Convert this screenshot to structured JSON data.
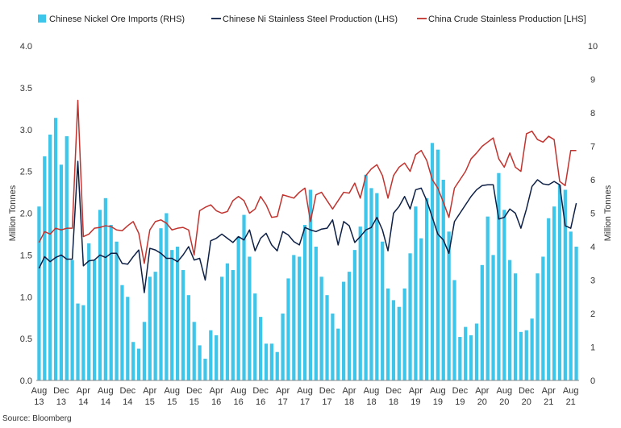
{
  "chart_data": {
    "type": "bar+line",
    "title": "",
    "source": "Source: Bloomberg",
    "ylabel_left": "Million Tonnes",
    "ylabel_right": "Million Tonnes",
    "ylim_left": [
      0,
      4
    ],
    "ylim_right": [
      0,
      10
    ],
    "yticks_left": [
      "0.0",
      "0.5",
      "1.0",
      "1.5",
      "2.0",
      "2.5",
      "3.0",
      "3.5",
      "4.0"
    ],
    "yticks_right": [
      "0",
      "1",
      "2",
      "3",
      "4",
      "5",
      "6",
      "7",
      "8",
      "9",
      "10"
    ],
    "x_start": "2013-08",
    "x_tick_labels": [
      {
        "month": "Aug",
        "year": "13"
      },
      {
        "month": "Dec",
        "year": "13"
      },
      {
        "month": "Apr",
        "year": "14"
      },
      {
        "month": "Aug",
        "year": "14"
      },
      {
        "month": "Dec",
        "year": "14"
      },
      {
        "month": "Apr",
        "year": "15"
      },
      {
        "month": "Aug",
        "year": "15"
      },
      {
        "month": "Dec",
        "year": "15"
      },
      {
        "month": "Apr",
        "year": "16"
      },
      {
        "month": "Aug",
        "year": "16"
      },
      {
        "month": "Dec",
        "year": "16"
      },
      {
        "month": "Apr",
        "year": "17"
      },
      {
        "month": "Aug",
        "year": "17"
      },
      {
        "month": "Dec",
        "year": "17"
      },
      {
        "month": "Apr",
        "year": "18"
      },
      {
        "month": "Aug",
        "year": "18"
      },
      {
        "month": "Dec",
        "year": "18"
      },
      {
        "month": "Apr",
        "year": "19"
      },
      {
        "month": "Aug",
        "year": "19"
      },
      {
        "month": "Dec",
        "year": "19"
      },
      {
        "month": "Apr",
        "year": "20"
      },
      {
        "month": "Aug",
        "year": "20"
      },
      {
        "month": "Dec",
        "year": "20"
      },
      {
        "month": "Apr",
        "year": "21"
      },
      {
        "month": "Aug",
        "year": "21"
      }
    ],
    "series": [
      {
        "name": "Chinese Nickel Ore Imports (RHS)",
        "kind": "bar",
        "axis": "right",
        "color": "#3ec6ea",
        "values": [
          5.2,
          6.7,
          7.35,
          7.85,
          6.45,
          7.3,
          3.6,
          2.3,
          2.25,
          4.1,
          3.6,
          5.1,
          5.45,
          4.65,
          4.15,
          2.85,
          2.5,
          1.15,
          0.95,
          1.75,
          3.1,
          3.25,
          4.55,
          5.0,
          3.9,
          4.0,
          3.3,
          2.55,
          1.75,
          1.05,
          0.65,
          1.5,
          1.35,
          3.1,
          3.5,
          3.3,
          4.3,
          4.95,
          3.7,
          2.6,
          1.9,
          1.1,
          1.1,
          0.85,
          2.0,
          3.05,
          3.75,
          3.7,
          4.65,
          5.7,
          4.0,
          3.1,
          2.55,
          2.0,
          1.55,
          2.95,
          3.25,
          3.9,
          4.6,
          6.15,
          5.75,
          5.6,
          4.15,
          2.75,
          2.4,
          2.2,
          2.75,
          3.8,
          5.2,
          4.25,
          5.45,
          7.1,
          6.9,
          6.0,
          4.45,
          3.0,
          1.3,
          1.6,
          1.35,
          1.7,
          3.45,
          4.9,
          3.75,
          6.2,
          5.1,
          3.6,
          3.2,
          1.45,
          1.5,
          1.85,
          3.2,
          3.7,
          4.85,
          5.2,
          5.85,
          5.7,
          4.45,
          4.0
        ]
      },
      {
        "name": "Chinese Ni Stainless Steel Production (LHS)",
        "kind": "line",
        "axis": "left",
        "color": "#0d1f45",
        "values": [
          1.34,
          1.48,
          1.42,
          1.47,
          1.5,
          1.45,
          1.45,
          2.62,
          1.37,
          1.43,
          1.44,
          1.5,
          1.47,
          1.52,
          1.52,
          1.4,
          1.39,
          1.48,
          1.56,
          1.05,
          1.58,
          1.56,
          1.52,
          1.46,
          1.46,
          1.42,
          1.5,
          1.6,
          1.44,
          1.46,
          1.2,
          1.67,
          1.7,
          1.75,
          1.7,
          1.65,
          1.72,
          1.68,
          1.8,
          1.55,
          1.7,
          1.76,
          1.62,
          1.55,
          1.78,
          1.74,
          1.66,
          1.62,
          1.83,
          1.8,
          1.78,
          1.81,
          1.82,
          1.92,
          1.62,
          1.9,
          1.85,
          1.65,
          1.72,
          1.8,
          1.83,
          1.95,
          1.8,
          1.55,
          2.0,
          2.08,
          2.2,
          2.05,
          2.28,
          2.3,
          2.15,
          1.95,
          1.75,
          1.68,
          1.52,
          1.9,
          2.0,
          2.1,
          2.2,
          2.28,
          2.33,
          2.34,
          2.34,
          1.93,
          1.95,
          2.05,
          2.0,
          1.82,
          2.05,
          2.32,
          2.4,
          2.35,
          2.34,
          2.38,
          2.34,
          1.85,
          1.82,
          2.12
        ]
      },
      {
        "name": "China Crude Stainless Production [LHS]",
        "kind": "line",
        "axis": "left",
        "color": "#c1332e",
        "values": [
          1.65,
          1.78,
          1.75,
          1.82,
          1.8,
          1.82,
          1.82,
          3.35,
          1.72,
          1.75,
          1.82,
          1.83,
          1.85,
          1.84,
          1.8,
          1.79,
          1.85,
          1.9,
          1.76,
          1.4,
          1.8,
          1.9,
          1.92,
          1.88,
          1.8,
          1.82,
          1.83,
          1.8,
          1.5,
          2.03,
          2.07,
          2.1,
          2.03,
          2.0,
          2.02,
          2.15,
          2.2,
          2.15,
          2.0,
          2.05,
          2.2,
          2.1,
          1.95,
          1.96,
          2.22,
          2.2,
          2.18,
          2.25,
          2.3,
          1.9,
          2.22,
          2.25,
          2.15,
          2.05,
          2.15,
          2.25,
          2.24,
          2.36,
          2.18,
          2.45,
          2.53,
          2.58,
          2.45,
          2.18,
          2.45,
          2.55,
          2.6,
          2.5,
          2.7,
          2.75,
          2.63,
          2.4,
          2.3,
          2.13,
          1.95,
          2.3,
          2.4,
          2.5,
          2.65,
          2.72,
          2.8,
          2.85,
          2.9,
          2.65,
          2.55,
          2.72,
          2.55,
          2.5,
          2.95,
          2.98,
          2.88,
          2.85,
          2.92,
          2.88,
          2.38,
          2.33,
          2.75,
          2.75
        ]
      }
    ],
    "legend_position": "top"
  }
}
